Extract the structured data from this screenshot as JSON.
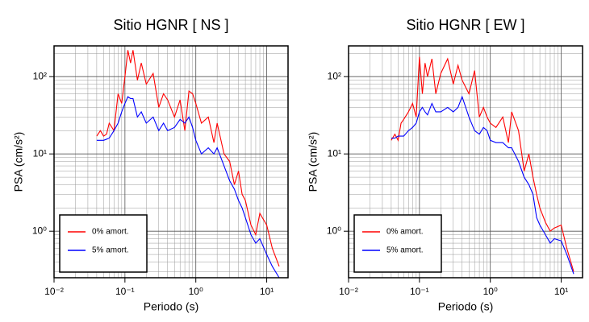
{
  "chart_data": [
    {
      "type": "line",
      "title": "Sitio HGNR [ NS ]",
      "xlabel": "Periodo (s)",
      "ylabel": "PSA (cm/s²)",
      "xscale": "log",
      "yscale": "log",
      "grid": true,
      "legend": "lower left",
      "xlim": [
        0.01,
        20
      ],
      "ylim": [
        0.25,
        250
      ],
      "xticks": [
        {
          "value": 0.01,
          "label": "10⁻²"
        },
        {
          "value": 0.1,
          "label": "10⁻¹"
        },
        {
          "value": 1,
          "label": "10⁰"
        },
        {
          "value": 10,
          "label": "10¹"
        }
      ],
      "yticks": [
        {
          "value": 1,
          "label": "10⁰"
        },
        {
          "value": 10,
          "label": "10¹"
        },
        {
          "value": 100,
          "label": "10²"
        }
      ],
      "x": [
        0.04,
        0.045,
        0.05,
        0.055,
        0.06,
        0.07,
        0.08,
        0.09,
        0.1,
        0.11,
        0.12,
        0.13,
        0.15,
        0.17,
        0.2,
        0.25,
        0.3,
        0.35,
        0.4,
        0.5,
        0.6,
        0.7,
        0.8,
        0.9,
        1,
        1.2,
        1.5,
        1.8,
        2,
        2.5,
        3,
        3.5,
        4,
        4.5,
        5,
        6,
        7,
        8,
        10,
        12,
        15
      ],
      "series": [
        {
          "name": "0% amort.",
          "color": "#ff0000",
          "values": [
            17,
            20,
            17,
            18,
            25,
            20,
            60,
            45,
            100,
            220,
            150,
            220,
            90,
            150,
            80,
            110,
            40,
            60,
            50,
            30,
            50,
            20,
            65,
            60,
            45,
            25,
            30,
            14,
            25,
            10,
            8,
            4,
            6,
            3,
            2.5,
            1.2,
            0.9,
            1.7,
            1.2,
            0.6,
            0.35
          ]
        },
        {
          "name": "5% amort.",
          "color": "#0000ff",
          "values": [
            15,
            15,
            15,
            15.5,
            16,
            20,
            25,
            35,
            45,
            55,
            52,
            52,
            30,
            35,
            25,
            30,
            20,
            25,
            20,
            22,
            28,
            25,
            30,
            22,
            15,
            10,
            12,
            10,
            12,
            7,
            4.5,
            3.5,
            2.5,
            2,
            1.5,
            0.9,
            0.7,
            0.8,
            0.5,
            0.35,
            0.25
          ]
        }
      ]
    },
    {
      "type": "line",
      "title": "Sitio HGNR [ EW ]",
      "xlabel": "Periodo (s)",
      "ylabel": "PSA (cm/s²)",
      "xscale": "log",
      "yscale": "log",
      "grid": true,
      "legend": "lower left",
      "xlim": [
        0.01,
        20
      ],
      "ylim": [
        0.25,
        250
      ],
      "xticks": [
        {
          "value": 0.01,
          "label": "10⁻²"
        },
        {
          "value": 0.1,
          "label": "10⁻¹"
        },
        {
          "value": 1,
          "label": "10⁰"
        },
        {
          "value": 10,
          "label": "10¹"
        }
      ],
      "yticks": [
        {
          "value": 1,
          "label": "10⁰"
        },
        {
          "value": 10,
          "label": "10¹"
        },
        {
          "value": 100,
          "label": "10²"
        }
      ],
      "x": [
        0.04,
        0.045,
        0.05,
        0.055,
        0.06,
        0.07,
        0.08,
        0.09,
        0.1,
        0.11,
        0.12,
        0.13,
        0.15,
        0.17,
        0.2,
        0.25,
        0.3,
        0.35,
        0.4,
        0.5,
        0.6,
        0.7,
        0.8,
        0.9,
        1,
        1.2,
        1.5,
        1.8,
        2,
        2.5,
        3,
        3.5,
        4,
        4.5,
        5,
        6,
        7,
        8,
        10,
        12,
        15
      ],
      "series": [
        {
          "name": "0% amort.",
          "color": "#ff0000",
          "values": [
            15,
            18,
            15,
            25,
            28,
            35,
            45,
            30,
            180,
            60,
            150,
            100,
            170,
            60,
            110,
            170,
            80,
            140,
            90,
            60,
            120,
            30,
            40,
            30,
            25,
            22,
            30,
            14,
            35,
            20,
            6,
            10,
            5,
            3,
            2,
            1.3,
            1.0,
            1.1,
            1.2,
            0.6,
            0.3
          ]
        },
        {
          "name": "5% amort.",
          "color": "#0000ff",
          "values": [
            16,
            16,
            17,
            17,
            17,
            20,
            22,
            25,
            35,
            40,
            35,
            32,
            45,
            35,
            35,
            40,
            35,
            40,
            55,
            30,
            20,
            18,
            22,
            20,
            15,
            14,
            14,
            12,
            12,
            8,
            5,
            4,
            3,
            1.5,
            1.2,
            0.9,
            0.7,
            0.8,
            0.75,
            0.5,
            0.28
          ]
        }
      ]
    }
  ]
}
